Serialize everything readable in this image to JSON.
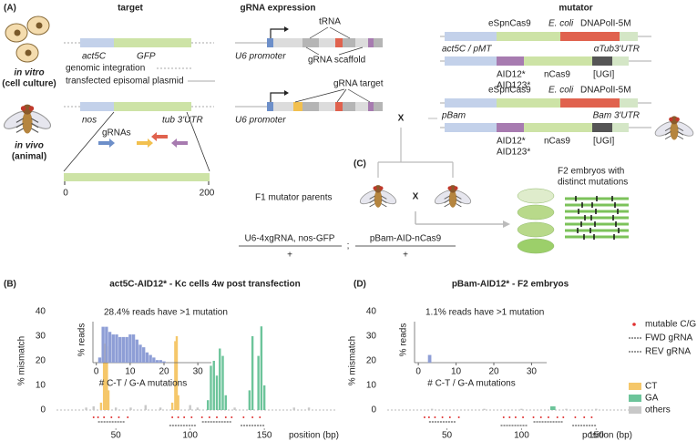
{
  "figure": {
    "panel_a": "(A)",
    "panel_c": "(C)",
    "panel_b": "(B)",
    "panel_d": "(D)",
    "col_target": "target",
    "col_grna": "gRNA expression",
    "col_mutator": "mutator",
    "in_vitro": "in vitro",
    "in_vitro_sub": "(cell culture)",
    "in_vivo": "in vivo",
    "in_vivo_sub": "(animal)",
    "act5c": "act5C",
    "gfp": "GFP",
    "genomic": "genomic integration",
    "episomal": "transfected episomal plasmid",
    "nos": "nos",
    "tub": "tub 3'UTR",
    "grnas": "gRNAs",
    "scale_start": "0",
    "scale_end": "200",
    "u6_row1": "U6 promoter",
    "u6_row2": "U6 promoter",
    "trna": "tRNA",
    "scaffold": "gRNA scaffold",
    "grna_target": "gRNA target",
    "cross_main": "X",
    "cross_f1": "X",
    "mutator_rows": [
      {
        "cas": "eSpnCas9",
        "ecoli": "E. coli",
        "pol": "DNAPolI-5M",
        "promoter": "act5C / pMT",
        "utr": "αTub3'UTR",
        "aid": [
          "AID12*",
          "AID123*"
        ],
        "ncas9": "nCas9",
        "ugi": "[UGI]"
      },
      {
        "cas": "eSpnCas9",
        "ecoli": "E. coli",
        "pol": "DNAPolI-5M",
        "promoter": "pBam",
        "utr": "Bam 3'UTR",
        "aid": [
          "AID12*",
          "AID123*"
        ],
        "ncas9": "nCas9",
        "ugi": "[UGI]"
      }
    ],
    "f1": "F1 mutator parents",
    "geno1": "U6-4xgRNA, nos-GFP",
    "geno1_plus": "+",
    "geno_sep": ";",
    "geno2": "pBam-AID-nCas9",
    "geno2_plus": "+",
    "f2_line1": "F2 embryos with",
    "f2_line2": "distinct mutations"
  },
  "chart_data": [
    {
      "type": "bar",
      "title": "act5C-AID12* - Kc cells 4w post transfection",
      "ylabel": "% mismatch",
      "xlabel": "position (bp)",
      "xlim": [
        10,
        199
      ],
      "ylim": [
        0,
        40
      ],
      "xticks": [
        50,
        100,
        150
      ],
      "yticks": [
        0,
        10,
        20,
        30,
        40
      ],
      "series": [
        {
          "color": "#f5c76a",
          "x": [
            40,
            42,
            43,
            44,
            45,
            88,
            90,
            91,
            92
          ],
          "values": [
            3,
            20,
            27,
            26,
            8,
            3,
            28,
            30,
            6
          ]
        },
        {
          "color": "#6cc49a",
          "x": [
            112,
            114,
            116,
            118,
            120,
            122,
            124,
            140,
            142,
            146,
            148,
            150
          ],
          "values": [
            4,
            18,
            20,
            14,
            25,
            22,
            6,
            8,
            30,
            22,
            34,
            10
          ]
        },
        {
          "color": "#c8c8c8",
          "x": [
            30,
            35,
            50,
            60,
            70,
            80,
            100,
            105,
            130,
            170,
            180
          ],
          "values": [
            1,
            1.5,
            1,
            1,
            2,
            1,
            2,
            1,
            1,
            1,
            1
          ]
        }
      ]
    },
    {
      "type": "bar",
      "annotation": "28.4% reads have >1 mutation",
      "ylabel": "% reads",
      "xlabel": "# C-T / G-A mutations",
      "xlim": [
        -1,
        34
      ],
      "ylim": [
        0,
        16
      ],
      "xticks": [
        0,
        10,
        20,
        30
      ],
      "color": "#8e9ed6",
      "x": [
        1,
        2,
        3,
        4,
        5,
        6,
        7,
        8,
        9,
        10,
        11,
        12,
        13,
        14,
        15,
        16,
        17,
        18,
        19,
        20
      ],
      "values": [
        2,
        14,
        14,
        12,
        11,
        11,
        10,
        10,
        10,
        11,
        11,
        9,
        7,
        6,
        4,
        3,
        2,
        1,
        1,
        0.5
      ]
    },
    {
      "type": "bar",
      "title": "pBam-AID12* - F2 embryos",
      "ylabel": "% mismatch",
      "xlabel": "position (bp)",
      "xlim": [
        10,
        173
      ],
      "ylim": [
        0,
        40
      ],
      "xticks": [
        50,
        100,
        150
      ],
      "yticks": [
        0,
        10,
        20,
        30,
        40
      ],
      "track_legend": [
        "mutable C/G",
        "FWD gRNA",
        "REV gRNA"
      ],
      "series": [
        {
          "name": "CT",
          "color": "#f5c76a",
          "x": [],
          "values": []
        },
        {
          "name": "GA",
          "color": "#6cc49a",
          "x": [
            120,
            121,
            122
          ],
          "values": [
            1.5,
            1.5,
            1.5
          ]
        },
        {
          "name": "others",
          "color": "#c8c8c8",
          "x": [
            40,
            75,
            100,
            130,
            150
          ],
          "values": [
            0.5,
            0.5,
            0.5,
            0.5,
            0.5
          ]
        }
      ]
    },
    {
      "type": "bar",
      "annotation": "1.1% reads have >1 mutation",
      "ylabel": "% reads",
      "xlabel": "# C-T / G-A mutations",
      "xlim": [
        -1,
        34
      ],
      "ylim": [
        0,
        16
      ],
      "xticks": [
        0,
        10,
        20,
        30
      ],
      "color": "#8e9ed6",
      "x": [
        3
      ],
      "values": [
        3
      ]
    }
  ]
}
